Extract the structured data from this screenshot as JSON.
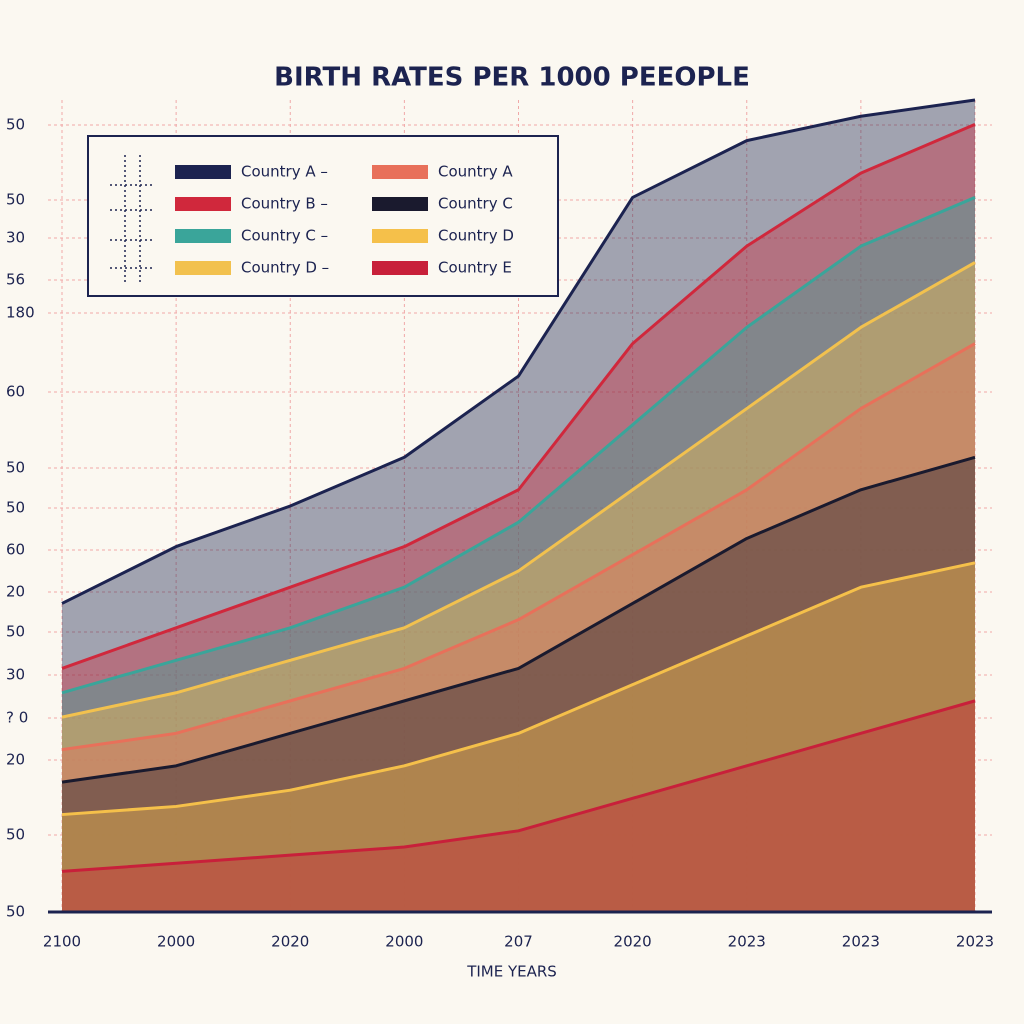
{
  "chart_data": {
    "type": "area",
    "title": "BIRTH RATES PER 1000  PEEOPLE",
    "x_label": "TIME YEARS",
    "categories": [
      "2100",
      "2000",
      "2020",
      "2000",
      "207",
      "2020",
      "2023",
      "2023",
      "2023"
    ],
    "y_axis_labels": [
      "50",
      "50",
      "30",
      "56",
      "180",
      "60",
      "50",
      "50",
      "60",
      "20",
      "50",
      "30",
      "? 0",
      "20",
      "50",
      "50"
    ],
    "ylim": [
      0,
      100
    ],
    "grid": true,
    "series": [
      {
        "name": "Country A –",
        "color": "#1c2350",
        "values": [
          38,
          45,
          50,
          56,
          66,
          88,
          95,
          98,
          100
        ]
      },
      {
        "name": "Country B –",
        "color": "#d0283c",
        "values": [
          30,
          35,
          40,
          45,
          52,
          70,
          82,
          91,
          97
        ]
      },
      {
        "name": "Country C –",
        "color": "#3aa59a",
        "values": [
          27,
          31,
          35,
          40,
          48,
          60,
          72,
          82,
          88
        ]
      },
      {
        "name": "Country D –",
        "color": "#f2c14e",
        "values": [
          24,
          27,
          31,
          35,
          42,
          52,
          62,
          72,
          80
        ]
      },
      {
        "name": "Country A",
        "color": "#e8705a",
        "values": [
          20,
          22,
          26,
          30,
          36,
          44,
          52,
          62,
          70
        ]
      },
      {
        "name": "Country C",
        "color": "#1a1a2e",
        "values": [
          16,
          18,
          22,
          26,
          30,
          38,
          46,
          52,
          56
        ]
      },
      {
        "name": "Country D",
        "color": "#f5c04a",
        "values": [
          12,
          13,
          15,
          18,
          22,
          28,
          34,
          40,
          43
        ]
      },
      {
        "name": "Country E",
        "color": "#c8203a",
        "values": [
          5,
          6,
          7,
          8,
          10,
          14,
          18,
          22,
          26
        ]
      }
    ]
  }
}
